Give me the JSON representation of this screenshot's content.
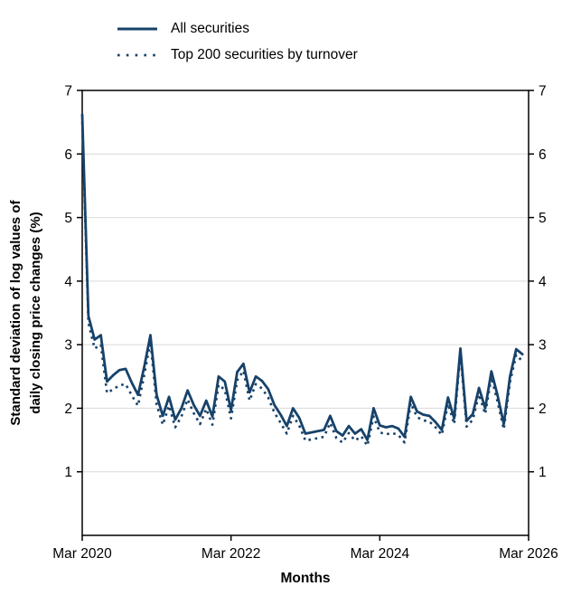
{
  "colors": {
    "line": "#17426A",
    "grid": "#D9D9D9",
    "axis": "#000000",
    "text": "#000000",
    "background": "#FFFFFF"
  },
  "legend": {
    "items": [
      {
        "label": "All securities",
        "style": "solid"
      },
      {
        "label": "Top 200 securities by turnover",
        "style": "dotted"
      }
    ]
  },
  "chart_data": {
    "type": "line",
    "title": "",
    "xlabel": "Months",
    "ylabel": "Standard deviation of log values of daily closing price changes (%)",
    "ylabel_lines": [
      "Standard deviation of log values of",
      "daily closing price changes (%)"
    ],
    "ylim": [
      0,
      7
    ],
    "y_ticks": [
      1,
      2,
      3,
      4,
      5,
      6,
      7
    ],
    "y_axis_sides": "both",
    "grid": "horizontal",
    "legend_position": "top-left",
    "x_unit": "month",
    "x_range_start": "Mar 2020",
    "x_range_end": "Feb 2026",
    "x_total_months": 72,
    "x_ticks": [
      {
        "label": "Mar 2020",
        "month_index": 0
      },
      {
        "label": "Mar 2022",
        "month_index": 24
      },
      {
        "label": "Mar 2024",
        "month_index": 48
      },
      {
        "label": "Mar 2026",
        "month_index": 72
      }
    ],
    "series": [
      {
        "name": "All securities",
        "line_style": "solid",
        "values": [
          6.62,
          3.45,
          3.08,
          3.15,
          2.42,
          2.52,
          2.6,
          2.62,
          2.4,
          2.21,
          2.65,
          3.15,
          2.21,
          1.88,
          2.18,
          1.82,
          2.0,
          2.28,
          2.05,
          1.88,
          2.12,
          1.87,
          2.5,
          2.42,
          1.97,
          2.57,
          2.7,
          2.25,
          2.5,
          2.43,
          2.3,
          2.05,
          1.9,
          1.72,
          2.0,
          1.85,
          1.6,
          1.62,
          1.64,
          1.66,
          1.88,
          1.64,
          1.57,
          1.72,
          1.6,
          1.67,
          1.5,
          2.0,
          1.73,
          1.7,
          1.72,
          1.68,
          1.55,
          2.18,
          1.95,
          1.9,
          1.88,
          1.78,
          1.66,
          2.17,
          1.84,
          2.94,
          1.8,
          1.91,
          2.32,
          2.0,
          2.58,
          2.2,
          1.75,
          2.5,
          2.93,
          2.85
        ]
      },
      {
        "name": "Top 200 securities by turnover",
        "line_style": "dotted",
        "values": [
          6.5,
          3.34,
          2.94,
          3.0,
          2.24,
          2.3,
          2.36,
          2.38,
          2.2,
          2.04,
          2.52,
          3.05,
          2.06,
          1.74,
          2.04,
          1.7,
          1.87,
          2.14,
          1.92,
          1.75,
          1.99,
          1.74,
          2.37,
          2.29,
          1.84,
          2.44,
          2.59,
          2.12,
          2.38,
          2.31,
          2.17,
          1.93,
          1.77,
          1.6,
          1.88,
          1.73,
          1.49,
          1.51,
          1.53,
          1.55,
          1.77,
          1.53,
          1.46,
          1.61,
          1.49,
          1.56,
          1.41,
          1.87,
          1.62,
          1.59,
          1.61,
          1.58,
          1.46,
          2.08,
          1.86,
          1.81,
          1.79,
          1.7,
          1.58,
          2.07,
          1.75,
          2.87,
          1.71,
          1.82,
          2.22,
          1.91,
          2.49,
          2.1,
          1.67,
          2.41,
          2.84,
          2.74
        ]
      }
    ]
  }
}
